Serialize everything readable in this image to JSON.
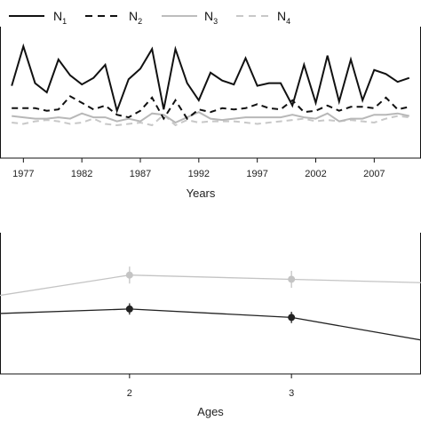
{
  "chart_data": [
    {
      "type": "line",
      "xlabel": "Years",
      "ylabel": "",
      "xlim": [
        1975,
        2011
      ],
      "ylim": [
        0,
        100
      ],
      "x_ticks": [
        "1977",
        "1982",
        "1987",
        "1992",
        "1997",
        "2002",
        "2007"
      ],
      "x_tick_values": [
        1977,
        1982,
        1987,
        1992,
        1997,
        2002,
        2007
      ],
      "legend": {
        "placement": "top",
        "entries": [
          {
            "base": "N",
            "sub": "1"
          },
          {
            "base": "N",
            "sub": "2"
          },
          {
            "base": "N",
            "sub": "3"
          },
          {
            "base": "N",
            "sub": "4"
          }
        ]
      },
      "x": [
        1976,
        1977,
        1978,
        1979,
        1980,
        1981,
        1982,
        1983,
        1984,
        1985,
        1986,
        1987,
        1988,
        1989,
        1990,
        1991,
        1992,
        1993,
        1994,
        1995,
        1996,
        1997,
        1998,
        1999,
        2000,
        2001,
        2002,
        2003,
        2004,
        2005,
        2006,
        2007,
        2008,
        2009,
        2010
      ],
      "series": [
        {
          "style": "solid-black",
          "color": "#111111",
          "values": [
            55,
            85,
            57,
            50,
            75,
            63,
            56,
            61,
            71,
            36,
            60,
            68,
            83,
            37,
            83,
            57,
            44,
            65,
            59,
            56,
            76,
            55,
            57,
            57,
            40,
            71,
            42,
            78,
            43,
            75,
            44,
            67,
            64,
            58,
            61
          ]
        },
        {
          "style": "dashed-black",
          "color": "#111111",
          "values": [
            38,
            38,
            38,
            36,
            37,
            47,
            42,
            37,
            40,
            33,
            31,
            36,
            46,
            30,
            44,
            30,
            37,
            35,
            38,
            37,
            38,
            41,
            38,
            37,
            44,
            35,
            36,
            40,
            36,
            39,
            39,
            38,
            46,
            37,
            39
          ]
        },
        {
          "style": "solid-gray",
          "color": "#b8b8b8",
          "values": [
            32,
            31,
            30,
            30,
            31,
            30,
            34,
            31,
            31,
            28,
            30,
            28,
            34,
            33,
            27,
            31,
            35,
            30,
            29,
            30,
            31,
            31,
            31,
            31,
            33,
            31,
            30,
            34,
            28,
            30,
            30,
            33,
            33,
            34,
            32
          ]
        },
        {
          "style": "dashed-gray",
          "color": "#c8c8c8",
          "values": [
            27,
            26,
            28,
            29,
            28,
            26,
            27,
            30,
            26,
            25,
            26,
            27,
            25,
            33,
            25,
            29,
            27,
            28,
            28,
            28,
            27,
            26,
            27,
            28,
            29,
            30,
            28,
            29,
            28,
            29,
            28,
            27,
            30,
            32,
            31
          ]
        }
      ]
    },
    {
      "type": "line",
      "xlabel": "Ages",
      "ylabel": "",
      "xlim": [
        1.2,
        3.8
      ],
      "ylim": [
        0,
        1
      ],
      "x_ticks": [
        "2",
        "3"
      ],
      "x_tick_values": [
        2,
        3
      ],
      "series": [
        {
          "style": "gray-points",
          "color": "#c4c4c4",
          "x": [
            1,
            2,
            3,
            4
          ],
          "values": [
            0.52,
            0.7,
            0.67,
            0.64
          ],
          "err": [
            0.0,
            0.06,
            0.06,
            0.0
          ]
        },
        {
          "style": "black-points",
          "color": "#222222",
          "x": [
            1,
            2,
            3,
            4
          ],
          "values": [
            0.42,
            0.46,
            0.4,
            0.2
          ],
          "err": [
            0.0,
            0.04,
            0.04,
            0.0
          ]
        }
      ]
    }
  ]
}
